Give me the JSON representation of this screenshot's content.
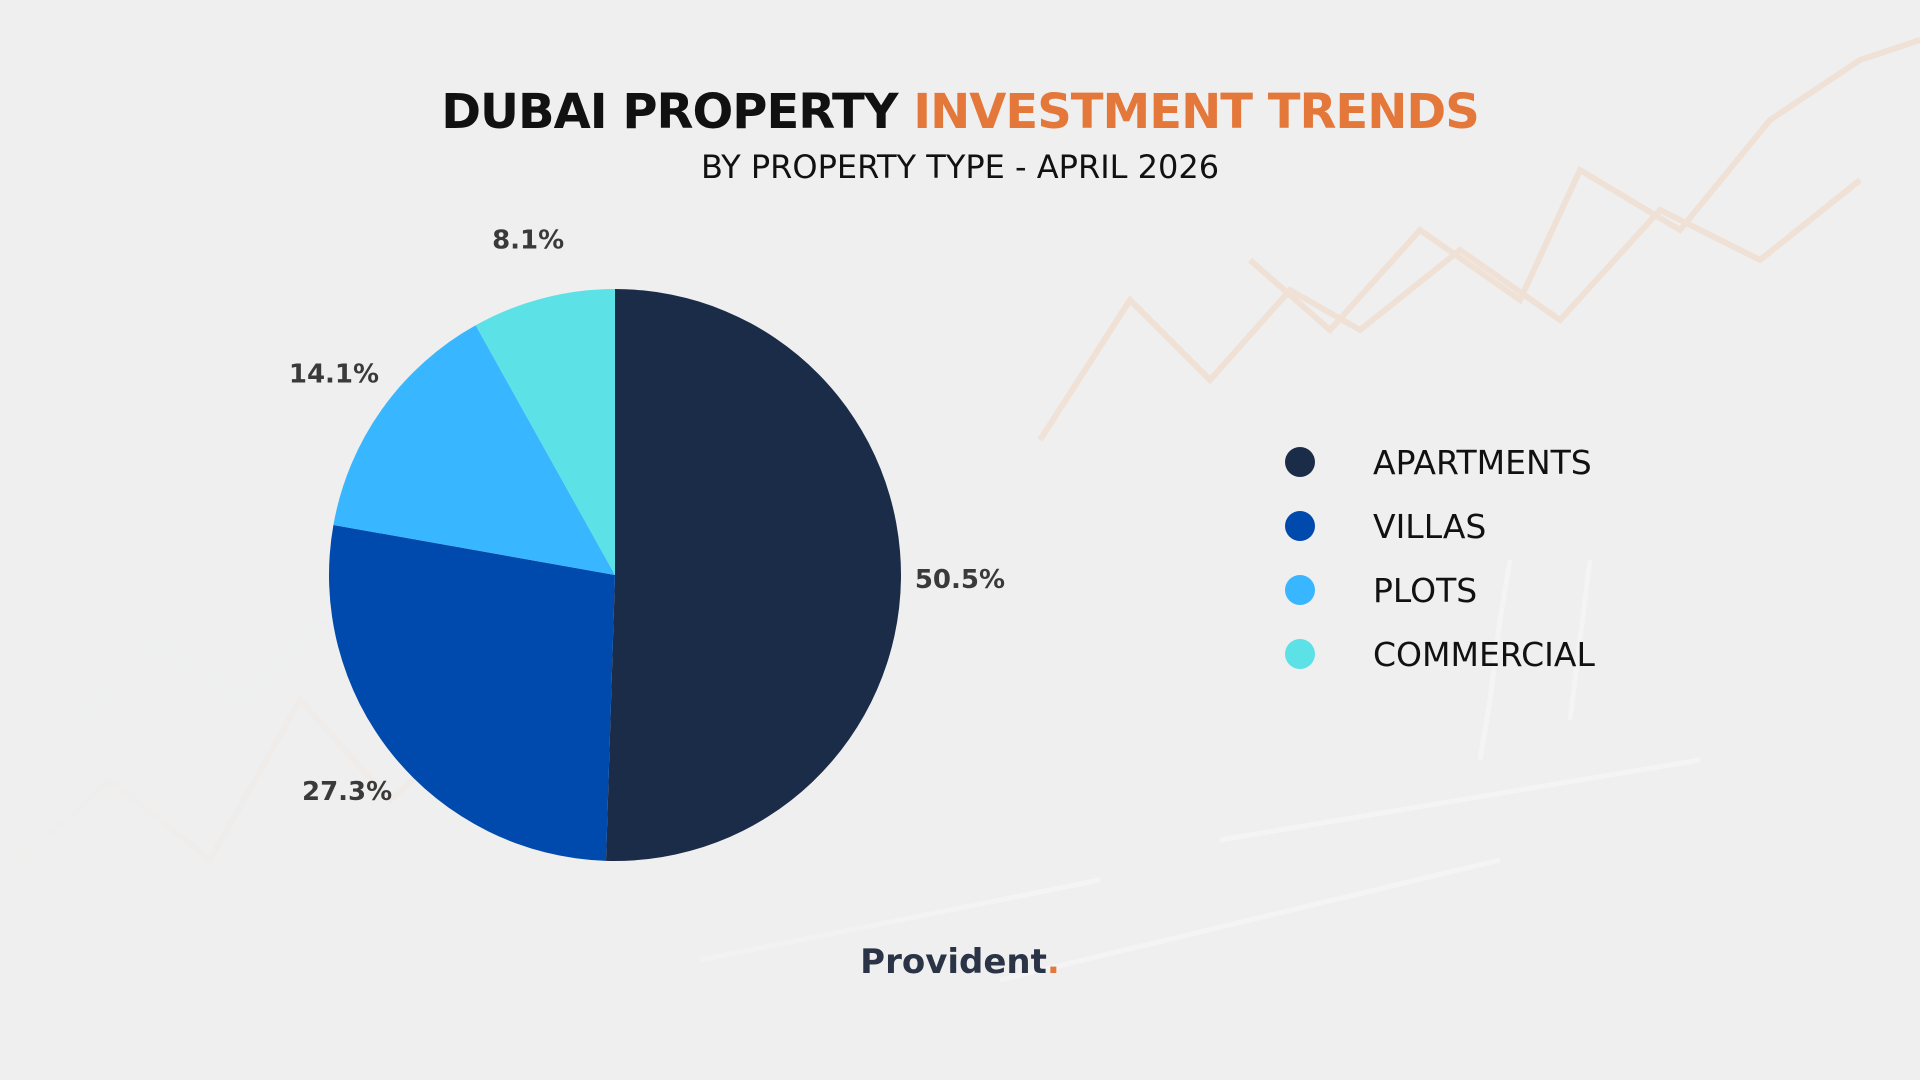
{
  "header": {
    "title_main": "DUBAI PROPERTY",
    "title_accent": "INVESTMENT TRENDS",
    "subtitle": "BY PROPERTY TYPE - APRIL 2026"
  },
  "colors": {
    "accent": "#e4773a",
    "title": "#111111",
    "brand": "#2b3447",
    "background": "#efefef"
  },
  "chart_data": {
    "type": "pie",
    "title": "DUBAI PROPERTY INVESTMENT TRENDS",
    "subtitle": "BY PROPERTY TYPE - APRIL 2026",
    "categories": [
      "APARTMENTS",
      "VILLAS",
      "PLOTS",
      "COMMERCIAL"
    ],
    "values": [
      50.5,
      27.3,
      14.1,
      8.1
    ],
    "labels": [
      "50.5%",
      "27.3%",
      "14.1%",
      "8.1%"
    ],
    "colors": [
      "#1b2c48",
      "#004aad",
      "#38b6ff",
      "#5ce1e6"
    ],
    "legend_position": "right"
  },
  "legend": {
    "items": [
      {
        "label": "APARTMENTS",
        "color": "#1b2c48"
      },
      {
        "label": "VILLAS",
        "color": "#004aad"
      },
      {
        "label": "PLOTS",
        "color": "#38b6ff"
      },
      {
        "label": "COMMERCIAL",
        "color": "#5ce1e6"
      }
    ]
  },
  "footer": {
    "brand": "Provident",
    "brand_dot": "."
  }
}
